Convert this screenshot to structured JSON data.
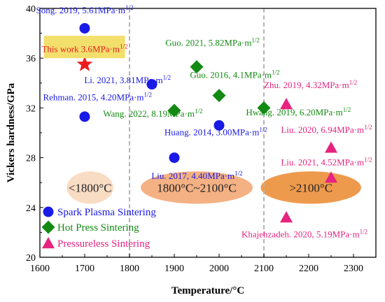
{
  "chart_data": {
    "type": "scatter",
    "xlabel": "Temperature/°C",
    "ylabel": "Vickers hardness/GPa",
    "xlim": [
      1600,
      2350
    ],
    "ylim": [
      20,
      40
    ],
    "x_ticks": [
      "1600",
      "1700",
      "1800",
      "1900",
      "2000",
      "2100",
      "2200",
      "2300"
    ],
    "y_ticks": [
      "20",
      "24",
      "28",
      "32",
      "36",
      "40"
    ],
    "x_tick_values": [
      1600,
      1700,
      1800,
      1900,
      2000,
      2100,
      2200,
      2300
    ],
    "y_tick_values": [
      20,
      24,
      28,
      32,
      36,
      40
    ],
    "vertical_dashed_lines": [
      1800,
      2100
    ],
    "colors": {
      "sps": "#1a1ae6",
      "hps": "#138a13",
      "pls": "#e6237e",
      "this_work": "#ee1c1c",
      "this_work_highlight": "#f2df6c",
      "zone_low": "#f9dcc4",
      "zone_mid": "#f4b184",
      "zone_high": "#ee9a4d"
    },
    "zones": [
      {
        "label": "<1800°C",
        "x_center": 1712,
        "y_center": 25.6,
        "x_span": 104,
        "y_span": 2.6,
        "color_key": "zone_low"
      },
      {
        "label": "1800°C~2100°C",
        "x_center": 1950,
        "y_center": 25.6,
        "x_span": 250,
        "y_span": 2.6,
        "color_key": "zone_mid"
      },
      {
        "label": ">2100°C",
        "x_center": 2205,
        "y_center": 25.6,
        "x_span": 224,
        "y_span": 2.6,
        "color_key": "zone_high"
      }
    ],
    "series": [
      {
        "name": "Spark Plasma Sintering",
        "marker": "circle",
        "color_key": "sps",
        "points": [
          {
            "x": 1700,
            "y": 38.4,
            "label": "Song. 2019, 5.61MPa·m1/2",
            "lx": 1700,
            "ly": 39.6,
            "anchor": "middle"
          },
          {
            "x": 1850,
            "y": 33.9,
            "label": "Li. 2021, 3.81MPa·m1/2",
            "lx": 1699,
            "ly": 34.0,
            "anchor": "start"
          },
          {
            "x": 1700,
            "y": 31.3,
            "label": "Rehman. 2015, 4.20MPa·m1/2",
            "lx": 1607,
            "ly": 32.6,
            "anchor": "start"
          },
          {
            "x": 2000,
            "y": 30.6,
            "label": "Huang. 2014, 3.00MPa·m1/2",
            "lx": 1878,
            "ly": 29.8,
            "anchor": "start"
          },
          {
            "x": 1900,
            "y": 28.0,
            "label": "Liu. 2017, 4.40MPa·m1/2",
            "lx": 1849,
            "ly": 26.3,
            "anchor": "start"
          }
        ]
      },
      {
        "name": "Hot Press Sintering",
        "marker": "diamond",
        "color_key": "hps",
        "points": [
          {
            "x": 1950,
            "y": 35.3,
            "label": "Guo. 2021, 5.82MPa·m1/2",
            "lx": 1880,
            "ly": 37.0,
            "anchor": "start"
          },
          {
            "x": 2000,
            "y": 33.0,
            "label": "Guo. 2016, 4.1MPa·m1/2",
            "lx": 1935,
            "ly": 34.4,
            "anchor": "start"
          },
          {
            "x": 1900,
            "y": 31.8,
            "label": "Wang. 2022, 8.19MPa·m1/2",
            "lx": 1741,
            "ly": 31.3,
            "anchor": "start"
          },
          {
            "x": 2100,
            "y": 32.0,
            "label": "Hwang. 2019, 6.20MPa·m1/2",
            "lx": 2060,
            "ly": 31.4,
            "anchor": "start"
          }
        ]
      },
      {
        "name": "Pressureless Sintering",
        "marker": "triangle",
        "color_key": "pls",
        "points": [
          {
            "x": 2150,
            "y": 32.3,
            "label": "Zhu. 2019, 4.32MPa·m1/2",
            "lx": 2100,
            "ly": 33.6,
            "anchor": "start"
          },
          {
            "x": 2250,
            "y": 28.8,
            "label": "Liu. 2020, 6.94MPa·m1/2",
            "lx": 2138,
            "ly": 30.0,
            "anchor": "start"
          },
          {
            "x": 2250,
            "y": 26.4,
            "label": "Liu. 2021, 4.52MPa·m1/2",
            "lx": 2138,
            "ly": 27.4,
            "anchor": "start"
          },
          {
            "x": 2150,
            "y": 23.2,
            "label": "Khajehzadeh. 2020, 5.19MPa·m1/2",
            "lx": 2050,
            "ly": 21.6,
            "anchor": "start"
          }
        ]
      }
    ],
    "this_work": {
      "x": 1700,
      "y": 35.5,
      "label": "This work 3.6MPa·m1/2",
      "lx": 1700,
      "ly": 36.5,
      "marker": "star"
    },
    "legend": {
      "placement": "bottom-left",
      "entries": [
        "Spark Plasma Sintering",
        "Hot Press Sintering",
        "Pressureless Sintering"
      ]
    }
  }
}
